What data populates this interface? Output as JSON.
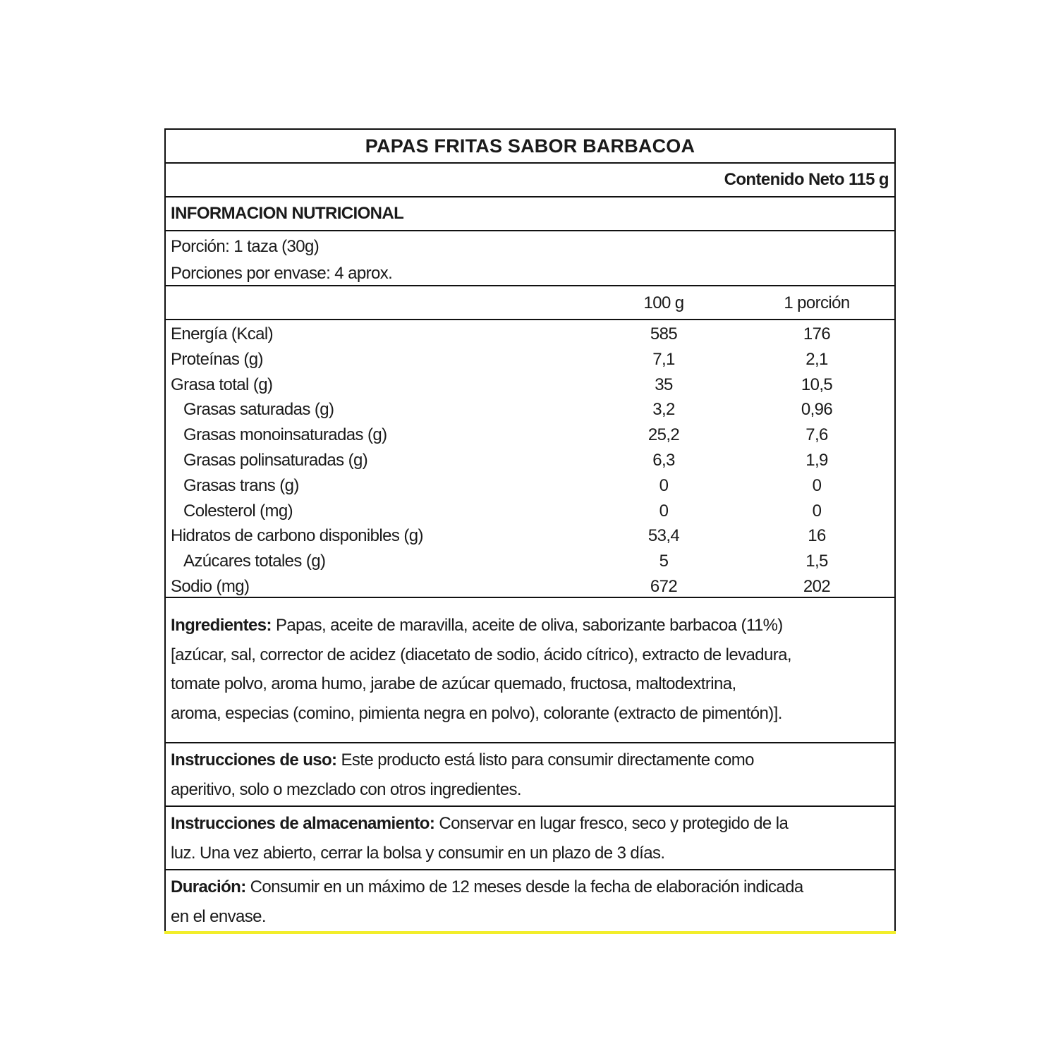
{
  "title": "PAPAS FRITAS SABOR BARBACOA",
  "net_content": "Contenido Neto 115 g",
  "section_title": "INFORMACION NUTRICIONAL",
  "portion": "Porción: 1 taza (30g)",
  "portions_per_pack": "Porciones por envase: 4 aprox.",
  "columns": [
    "100 g",
    "1 porción"
  ],
  "nutrients": [
    {
      "name": "Energía (Kcal)",
      "per100": "585",
      "perPortion": "176",
      "sub": false
    },
    {
      "name": "Proteínas (g)",
      "per100": "7,1",
      "perPortion": "2,1",
      "sub": false
    },
    {
      "name": "Grasa total (g)",
      "per100": "35",
      "perPortion": "10,5",
      "sub": false
    },
    {
      "name": "Grasas saturadas (g)",
      "per100": "3,2",
      "perPortion": "0,96",
      "sub": true
    },
    {
      "name": "Grasas monoinsaturadas (g)",
      "per100": "25,2",
      "perPortion": "7,6",
      "sub": true
    },
    {
      "name": "Grasas polinsaturadas (g)",
      "per100": "6,3",
      "perPortion": "1,9",
      "sub": true
    },
    {
      "name": "Grasas trans (g)",
      "per100": "0",
      "perPortion": "0",
      "sub": true
    },
    {
      "name": "Colesterol (mg)",
      "per100": "0",
      "perPortion": "0",
      "sub": true
    },
    {
      "name": "Hidratos de carbono disponibles (g)",
      "per100": "53,4",
      "perPortion": "16",
      "sub": false
    },
    {
      "name": "Azúcares totales (g)",
      "per100": "5",
      "perPortion": "1,5",
      "sub": true
    },
    {
      "name": "Sodio (mg)",
      "per100": "672",
      "perPortion": "202",
      "sub": false
    }
  ],
  "ingredients": {
    "label": "Ingredientes:",
    "lines": [
      " Papas, aceite de maravilla, aceite de oliva, saborizante barbacoa (11%)",
      "[azúcar, sal, corrector de acidez (diacetato de sodio, ácido cítrico), extracto de levadura,",
      "tomate polvo, aroma humo, jarabe de azúcar quemado, fructosa, maltodextrina,",
      "aroma, especias (comino, pimienta negra en polvo), colorante (extracto de pimentón)]."
    ]
  },
  "usage": {
    "label": "Instrucciones de uso:",
    "lines": [
      " Este producto está listo para consumir directamente como",
      "aperitivo, solo o mezclado con otros ingredientes."
    ]
  },
  "storage": {
    "label": "Instrucciones de almacenamiento:",
    "lines": [
      " Conservar en lugar fresco, seco y protegido de la",
      "luz. Una vez abierto, cerrar la bolsa y consumir en un plazo de 3 días."
    ]
  },
  "duration": {
    "label": "Duración:",
    "lines": [
      " Consumir en un máximo de 12 meses desde la fecha de elaboración indicada",
      "en el envase."
    ]
  },
  "colors": {
    "border": "#111111",
    "accent_line": "#f2ee2a"
  }
}
